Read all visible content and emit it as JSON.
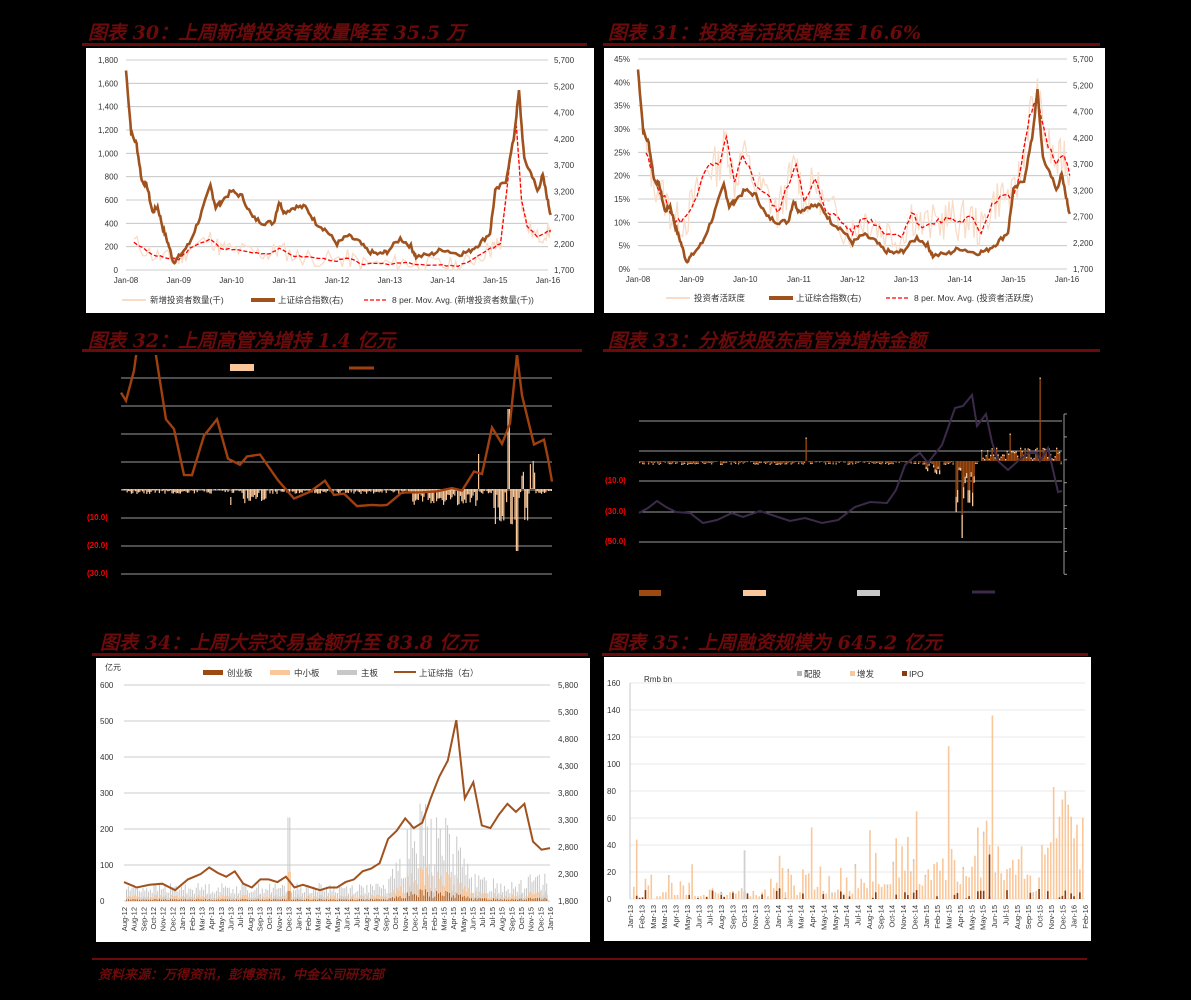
{
  "colors": {
    "title": "#6b0a0a",
    "index": "#a0521e",
    "new_investors": "#f8dcc8",
    "mov_avg": "#ff0000",
    "cyb": "#9c4a12",
    "zxb": "#f9c79a",
    "zb": "#c8c8c8",
    "purple": "#3b2a4a",
    "ipo": "#8b3a0f"
  },
  "footer": {
    "source": "资料来源：万得资讯，彭博资讯，中金公司研究部"
  },
  "chart_data": [
    {
      "id": "chart30",
      "type": "line",
      "title": "图表 30：上周新增投资者数量降至 35.5 万",
      "x_ticks": [
        "Jan-08",
        "Jan-09",
        "Jan-10",
        "Jan-11",
        "Jan-12",
        "Jan-13",
        "Jan-14",
        "Jan-15",
        "Jan-16"
      ],
      "y_left_ticks": [
        "1,800",
        "1,600",
        "1,400",
        "1,200",
        "1,000",
        "800",
        "600",
        "400",
        "200",
        "0"
      ],
      "y_right_ticks": [
        "5,700",
        "5,200",
        "4,700",
        "4,200",
        "3,700",
        "3,200",
        "2,700",
        "2,200",
        "1,700"
      ],
      "ylim_left": [
        0,
        1800
      ],
      "ylim_right": [
        1700,
        5700
      ],
      "legend": [
        "新增投资者数量(千)",
        "上证综合指数(右)",
        "8 per. Mov. Avg. (新增投资者数量(千))"
      ],
      "series": [
        {
          "name": "上证综合指数(右)",
          "axis": "right",
          "x": [
            2008.0,
            2008.1,
            2008.2,
            2008.3,
            2008.4,
            2008.5,
            2008.6,
            2008.7,
            2008.8,
            2008.9,
            2009.0,
            2009.2,
            2009.4,
            2009.6,
            2009.7,
            2009.8,
            2010.0,
            2010.2,
            2010.4,
            2010.6,
            2010.8,
            2010.9,
            2011.0,
            2011.2,
            2011.4,
            2011.6,
            2011.8,
            2012.0,
            2012.2,
            2012.4,
            2012.6,
            2012.8,
            2012.95,
            2013.2,
            2013.4,
            2013.5,
            2013.8,
            2014.0,
            2014.3,
            2014.5,
            2014.7,
            2014.9,
            2015.0,
            2015.2,
            2015.35,
            2015.45,
            2015.55,
            2015.7,
            2015.8,
            2015.9,
            2016.0,
            2016.05
          ],
          "values": [
            5500,
            4300,
            4100,
            3400,
            3300,
            2800,
            2900,
            2500,
            2200,
            1850,
            1950,
            2200,
            2700,
            3300,
            2900,
            3000,
            3200,
            3100,
            2700,
            2600,
            2600,
            3000,
            2800,
            2900,
            2900,
            2600,
            2450,
            2200,
            2350,
            2250,
            2050,
            2000,
            2050,
            2300,
            2150,
            1950,
            2000,
            2100,
            2000,
            2050,
            2200,
            2400,
            3200,
            3400,
            4200,
            5100,
            3800,
            3500,
            3200,
            3500,
            3000,
            2750
          ]
        },
        {
          "name": "8 per. Mov. Avg.",
          "axis": "left",
          "x": [
            2008.15,
            2008.5,
            2008.8,
            2009.0,
            2009.2,
            2009.6,
            2009.8,
            2010.0,
            2010.4,
            2010.7,
            2010.9,
            2011.2,
            2011.5,
            2012.0,
            2012.2,
            2012.5,
            2013.0,
            2013.3,
            2013.6,
            2014.0,
            2014.3,
            2014.6,
            2014.9,
            2015.0,
            2015.1,
            2015.3,
            2015.4,
            2015.5,
            2015.6,
            2015.8,
            2016.0,
            2016.05
          ],
          "values": [
            240,
            130,
            100,
            90,
            180,
            270,
            180,
            180,
            150,
            140,
            180,
            120,
            110,
            80,
            100,
            50,
            50,
            70,
            40,
            40,
            30,
            100,
            180,
            200,
            230,
            1000,
            1230,
            600,
            380,
            280,
            330,
            340
          ]
        }
      ]
    },
    {
      "id": "chart31",
      "type": "line",
      "title": "图表 31：投资者活跃度降至 16.6%",
      "x_ticks": [
        "Jan-08",
        "Jan-09",
        "Jan-10",
        "Jan-11",
        "Jan-12",
        "Jan-13",
        "Jan-14",
        "Jan-15",
        "Jan-16"
      ],
      "y_left_ticks": [
        "45%",
        "40%",
        "35%",
        "30%",
        "25%",
        "20%",
        "15%",
        "10%",
        "5%",
        "0%"
      ],
      "y_right_ticks": [
        "5,700",
        "5,200",
        "4,700",
        "4,200",
        "3,700",
        "3,200",
        "2,700",
        "2,200",
        "1,700"
      ],
      "ylim_left": [
        0,
        45
      ],
      "ylim_right": [
        1700,
        5700
      ],
      "legend": [
        "投资者活跃度",
        "上证综合指数(右)",
        "8 per. Mov. Avg. (投资者活跃度)"
      ],
      "series": [
        {
          "name": "8 per. Mov. Avg.",
          "axis": "left",
          "x": [
            2008.15,
            2008.3,
            2008.5,
            2008.7,
            2008.9,
            2009.1,
            2009.3,
            2009.5,
            2009.65,
            2009.8,
            2009.95,
            2010.2,
            2010.4,
            2010.6,
            2010.8,
            2010.95,
            2011.1,
            2011.3,
            2011.5,
            2011.8,
            2012.0,
            2012.2,
            2012.4,
            2012.6,
            2012.9,
            2013.1,
            2013.3,
            2013.6,
            2013.8,
            2014.0,
            2014.2,
            2014.4,
            2014.6,
            2014.8,
            2015.0,
            2015.15,
            2015.3,
            2015.45,
            2015.6,
            2015.8,
            2015.95,
            2016.05
          ],
          "values": [
            25,
            19,
            15,
            10,
            11,
            16,
            22,
            22,
            28,
            18,
            25,
            18,
            16,
            12,
            18,
            23,
            14,
            19,
            13,
            10,
            8,
            11,
            10,
            8,
            7,
            12,
            9,
            10,
            11,
            10,
            11,
            8,
            14,
            16,
            15,
            22,
            33,
            37,
            28,
            22,
            25,
            20
          ]
        }
      ]
    },
    {
      "id": "chart32",
      "type": "bar+line",
      "title": "图表 32：上周高管净增持 1.4 亿元",
      "y_left_ticks_visible": [
        "(10.0)",
        "(20.0)",
        "(30.0)"
      ]
    },
    {
      "id": "chart33",
      "type": "stacked-bar+line",
      "title": "图表 33：分板块股东高管净增持金额",
      "y_left_ticks_visible": [
        "(10.0)",
        "(30.0)",
        "(50.0)"
      ]
    },
    {
      "id": "chart34",
      "type": "bar+line",
      "title": "图表 34：上周大宗交易金额升至 83.8 亿元",
      "unit_left": "亿元",
      "legend": [
        "创业板",
        "中小板",
        "主板",
        "上证综指（右）"
      ],
      "y_left_ticks": [
        "600",
        "500",
        "400",
        "300",
        "200",
        "100",
        "0"
      ],
      "y_right_ticks": [
        "5,800",
        "5,300",
        "4,800",
        "4,300",
        "3,800",
        "3,300",
        "2,800",
        "2,300",
        "1,800"
      ],
      "ylim_left": [
        0,
        600
      ],
      "ylim_right": [
        1800,
        5800
      ],
      "x_ticks": [
        "Aug-12",
        "Aug-12",
        "Sep-12",
        "Oct-12",
        "Nov-12",
        "Dec-12",
        "Jan-13",
        "Feb-13",
        "Mar-13",
        "Apr-13",
        "May-13",
        "Jun-13",
        "Jul-13",
        "Aug-13",
        "Sep-13",
        "Oct-13",
        "Nov-13",
        "Dec-13",
        "Jan-14",
        "Feb-14",
        "Mar-14",
        "Apr-14",
        "May-14",
        "Jun-14",
        "Jul-14",
        "Aug-14",
        "Aug-14",
        "Sep-14",
        "Oct-14",
        "Nov-14",
        "Dec-14",
        "Jan-15",
        "Feb-15",
        "Mar-15",
        "Apr-15",
        "May-15",
        "Jun-15",
        "Jul-15",
        "Jul-15",
        "Aug-15",
        "Sep-15",
        "Oct-15",
        "Nov-15",
        "Dec-15",
        "Jan-16"
      ],
      "series": [
        {
          "name": "上证综指（右）",
          "axis": "right",
          "x": [
            0,
            0.03,
            0.06,
            0.09,
            0.12,
            0.15,
            0.18,
            0.2,
            0.22,
            0.24,
            0.26,
            0.28,
            0.3,
            0.32,
            0.34,
            0.36,
            0.38,
            0.4,
            0.42,
            0.44,
            0.46,
            0.48,
            0.5,
            0.52,
            0.54,
            0.56,
            0.58,
            0.6,
            0.62,
            0.64,
            0.66,
            0.68,
            0.7,
            0.72,
            0.74,
            0.76,
            0.78,
            0.8,
            0.82,
            0.84,
            0.86,
            0.88,
            0.9,
            0.92,
            0.94,
            0.96,
            0.98,
            1.0
          ],
          "values": [
            2150,
            2050,
            2100,
            2120,
            2000,
            2200,
            2300,
            2420,
            2320,
            2250,
            2350,
            2120,
            2050,
            2200,
            2200,
            2150,
            2250,
            2050,
            2100,
            2050,
            2000,
            2050,
            2050,
            2150,
            2200,
            2350,
            2400,
            2500,
            2950,
            3100,
            3330,
            3150,
            3250,
            3700,
            4100,
            4400,
            5150,
            3700,
            4000,
            3200,
            3150,
            3400,
            3600,
            3450,
            3600,
            2900,
            2750,
            2780
          ]
        },
        {
          "name": "主板",
          "type": "bar",
          "approx_peak": 480
        }
      ]
    },
    {
      "id": "chart35",
      "type": "stacked-bar",
      "title": "图表 35：上周融资规模为 645.2 亿元",
      "unit_left": "Rmb bn",
      "legend": [
        "配股",
        "增发",
        "IPO"
      ],
      "y_left_ticks": [
        "160",
        "140",
        "120",
        "100",
        "80",
        "60",
        "40",
        "20",
        "0"
      ],
      "ylim_left": [
        0,
        160
      ],
      "x_ticks": [
        "Jan-13",
        "Feb-13",
        "Mar-13",
        "Mar-13",
        "Apr-13",
        "May-13",
        "Jun-13",
        "Jul-13",
        "Aug-13",
        "Sep-13",
        "Oct-13",
        "Nov-13",
        "Dec-13",
        "Jan-14",
        "Jan-14",
        "Mar-14",
        "Apr-14",
        "May-14",
        "May-14",
        "Jun-14",
        "Jul-14",
        "Aug-14",
        "Sep-14",
        "Oct-14",
        "Nov-14",
        "Dec-14",
        "Jan-15",
        "Feb-15",
        "Mar-15",
        "Apr-15",
        "May-15",
        "May-15",
        "Jun-15",
        "Jul-15",
        "Aug-15",
        "Sep-15",
        "Oct-15",
        "Nov-15",
        "Dec-15",
        "Jan-16",
        "Feb-16"
      ],
      "series": [
        {
          "name": "增发",
          "values": [
            9,
            44,
            0,
            1,
            15,
            10,
            18,
            0,
            2,
            2,
            5,
            5,
            16,
            12,
            3,
            3,
            13,
            10,
            3,
            12,
            25,
            2,
            2,
            2,
            3,
            2,
            7,
            8,
            5,
            4,
            3,
            1,
            3,
            5,
            6,
            4,
            6,
            8,
            36,
            2,
            2,
            5,
            3,
            2,
            5,
            7,
            2,
            15,
            8,
            12,
            32,
            23,
            5,
            20,
            18,
            10,
            3,
            5,
            22,
            18,
            19,
            53,
            7,
            9,
            24,
            6,
            4,
            17,
            2,
            5,
            7,
            23,
            4,
            16,
            6,
            4,
            23,
            8,
            15,
            12,
            8,
            51,
            13,
            34,
            11,
            9,
            11,
            8,
            11,
            25,
            45,
            16,
            39,
            21,
            46,
            19,
            27,
            65,
            11,
            10,
            16,
            22,
            14,
            26,
            27,
            21,
            30,
            14,
            113,
            37,
            29,
            12,
            11,
            22,
            17,
            16,
            24,
            32,
            53,
            16,
            47,
            58,
            40,
            136,
            18,
            39,
            19,
            14,
            22,
            23,
            29,
            18,
            29,
            39,
            15,
            18,
            17,
            2,
            6,
            16,
            40,
            33,
            38,
            42,
            83,
            45,
            61,
            73,
            80,
            70,
            61,
            45,
            55,
            22,
            60
          ]
        },
        {
          "name": "配股",
          "peak": 36
        },
        {
          "name": "IPO",
          "peak": 33
        }
      ]
    }
  ]
}
